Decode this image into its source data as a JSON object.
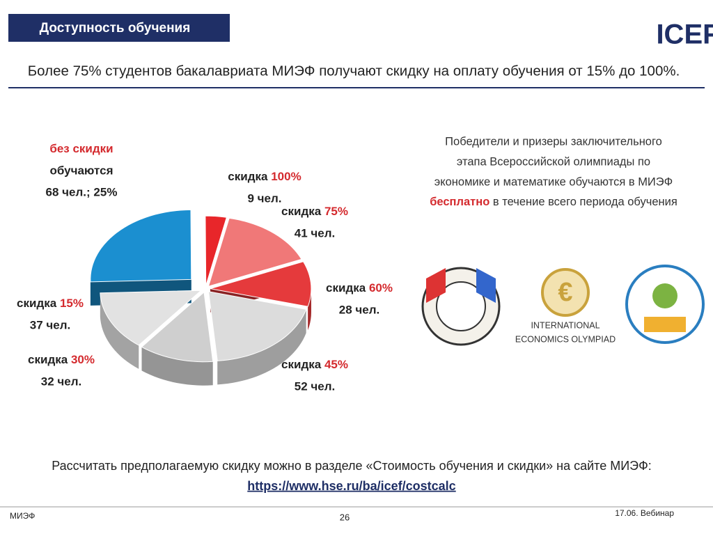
{
  "header": {
    "title": "Доступность обучения",
    "logo": "ICEF",
    "subtitle": "Более 75% студентов бакалавриата МИЭФ получают скидку на оплату обучения от 15% до 100%."
  },
  "chart_data": {
    "type": "pie",
    "slices": [
      {
        "label": "без скидки",
        "note": "обучаются",
        "value": 68,
        "value_label": "68 чел.; 25%",
        "color": "#1b8fd0"
      },
      {
        "prefix": "скидка",
        "label": "100%",
        "value": 9,
        "value_label": "9 чел.",
        "color": "#e8262a"
      },
      {
        "prefix": "скидка",
        "label": "75%",
        "value": 41,
        "value_label": "41 чел.",
        "color": "#f07878"
      },
      {
        "prefix": "скидка",
        "label": "60%",
        "value": 28,
        "value_label": "28 чел.",
        "color": "#e53a3c"
      },
      {
        "prefix": "скидка",
        "label": "45%",
        "value": 52,
        "value_label": "52 чел.",
        "color": "#dcdcdc"
      },
      {
        "prefix": "скидка",
        "label": "30%",
        "value": 32,
        "value_label": "32 чел.",
        "color": "#cfcfcf"
      },
      {
        "prefix": "скидка",
        "label": "15%",
        "value": 37,
        "value_label": "37 чел.",
        "color": "#e2e2e2"
      }
    ]
  },
  "prize_note": {
    "lines": [
      "Победители и призеры заключительного",
      "этапа Всероссийской олимпиады по",
      "экономике и математике обучаются в МИЭФ"
    ],
    "highlight": "бесплатно",
    "tail": "в течение всего периода обучения"
  },
  "olympiad_logo": {
    "line1": "INTERNATIONAL",
    "line2": "ECONOMICS OLYMPIAD"
  },
  "bottom": {
    "text": "Рассчитать предполагаемую скидку можно в разделе «Стоимость обучения и скидки» на сайте МИЭФ:",
    "link": "https://www.hse.ru/ba/icef/costcalc"
  },
  "footer": {
    "left": "МИЭФ",
    "page": "26",
    "right": "17.06. Вебинар"
  }
}
